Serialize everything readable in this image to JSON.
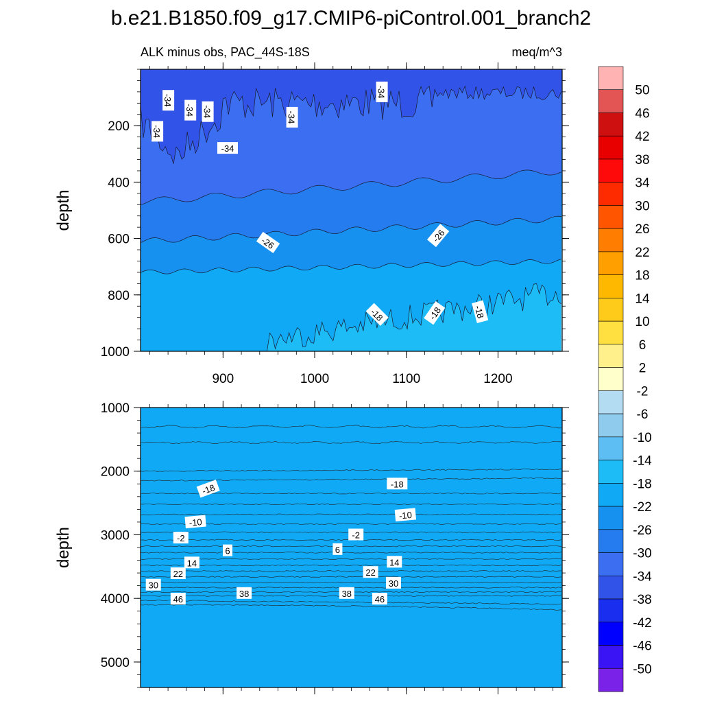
{
  "chart_data": {
    "type": "heatmap",
    "title": "b.e21.B1850.f09_g17.CMIP6-piControl.001_branch2",
    "variable_label": "ALK minus obs, PAC_44S-18S",
    "units_label": "meq/m^3",
    "x_axis": {
      "range": [
        810,
        1270
      ],
      "ticks": [
        900,
        1000,
        1100,
        1200
      ],
      "tick_labels": [
        "900",
        "1000",
        "1100",
        "1200"
      ],
      "minor_step": 20
    },
    "panels": [
      {
        "name": "upper",
        "ylabel": "depth",
        "depth_range": [
          0,
          1000
        ],
        "y_ticks": [
          200,
          400,
          600,
          800,
          1000
        ],
        "y_tick_labels": [
          "200",
          "400",
          "600",
          "800",
          "1000"
        ],
        "contour_labels": [
          {
            "text": "-34",
            "x": 828,
            "depth": 220,
            "rot": 90
          },
          {
            "text": "-34",
            "x": 840,
            "depth": 110,
            "rot": 90
          },
          {
            "text": "-34",
            "x": 864,
            "depth": 145,
            "rot": 90
          },
          {
            "text": "-34",
            "x": 883,
            "depth": 150,
            "rot": 90
          },
          {
            "text": "-34",
            "x": 975,
            "depth": 170,
            "rot": 90
          },
          {
            "text": "-34",
            "x": 1073,
            "depth": 80,
            "rot": 90
          },
          {
            "text": "-34",
            "x": 905,
            "depth": 280,
            "rot": 0
          },
          {
            "text": "-26",
            "x": 949,
            "depth": 615,
            "rot": 35
          },
          {
            "text": "-26",
            "x": 1135,
            "depth": 590,
            "rot": -50
          },
          {
            "text": "-18",
            "x": 1068,
            "depth": 870,
            "rot": 45
          },
          {
            "text": "-18",
            "x": 1131,
            "depth": 865,
            "rot": -55
          },
          {
            "text": "-18",
            "x": 1180,
            "depth": 860,
            "rot": 75
          }
        ]
      },
      {
        "name": "lower",
        "ylabel": "depth",
        "depth_range": [
          1000,
          5400
        ],
        "y_ticks": [
          1000,
          2000,
          3000,
          4000,
          5000
        ],
        "y_tick_labels": [
          "1000",
          "2000",
          "3000",
          "4000",
          "5000"
        ],
        "contour_labels": [
          {
            "text": "-18",
            "x": 884,
            "depth": 2280,
            "rot": -20
          },
          {
            "text": "-10",
            "x": 870,
            "depth": 2800,
            "rot": -5
          },
          {
            "text": "-2",
            "x": 854,
            "depth": 3050,
            "rot": 0
          },
          {
            "text": "6",
            "x": 905,
            "depth": 3250,
            "rot": 0
          },
          {
            "text": "14",
            "x": 866,
            "depth": 3440,
            "rot": 0
          },
          {
            "text": "22",
            "x": 851,
            "depth": 3610,
            "rot": 0
          },
          {
            "text": "30",
            "x": 824,
            "depth": 3790,
            "rot": 0
          },
          {
            "text": "46",
            "x": 851,
            "depth": 4010,
            "rot": 0
          },
          {
            "text": "38",
            "x": 923,
            "depth": 3920,
            "rot": 0
          },
          {
            "text": "-18",
            "x": 1090,
            "depth": 2200,
            "rot": 0
          },
          {
            "text": "-10",
            "x": 1099,
            "depth": 2690,
            "rot": -5
          },
          {
            "text": "-2",
            "x": 1045,
            "depth": 3000,
            "rot": 0
          },
          {
            "text": "6",
            "x": 1025,
            "depth": 3230,
            "rot": 0
          },
          {
            "text": "14",
            "x": 1087,
            "depth": 3430,
            "rot": 0
          },
          {
            "text": "22",
            "x": 1061,
            "depth": 3590,
            "rot": 0
          },
          {
            "text": "30",
            "x": 1086,
            "depth": 3760,
            "rot": 0
          },
          {
            "text": "38",
            "x": 1035,
            "depth": 3920,
            "rot": 0
          },
          {
            "text": "46",
            "x": 1071,
            "depth": 4010,
            "rot": 0
          }
        ]
      }
    ],
    "colorbar": {
      "labels": [
        "50",
        "46",
        "42",
        "38",
        "34",
        "30",
        "26",
        "22",
        "18",
        "14",
        "10",
        "6",
        "2",
        "-2",
        "-6",
        "-10",
        "-14",
        "-18",
        "-22",
        "-26",
        "-30",
        "-34",
        "-38",
        "-42",
        "-46",
        "-50"
      ],
      "colors": [
        "#ffb3b3",
        "#e35555",
        "#cf1010",
        "#e80000",
        "#ff0a0a",
        "#ff2b00",
        "#ff5500",
        "#ff7d00",
        "#ffa000",
        "#ffb800",
        "#ffcb1a",
        "#ffe040",
        "#fff08c",
        "#ffffcc",
        "#b3dcf2",
        "#8fcbed",
        "#5cbef2",
        "#1ebcf7",
        "#0fa9f5",
        "#1691f0",
        "#247cee",
        "#3b6ef0",
        "#3253e8",
        "#1a2ef0",
        "#0000ff",
        "#3a14f5",
        "#7a22e8"
      ]
    }
  }
}
